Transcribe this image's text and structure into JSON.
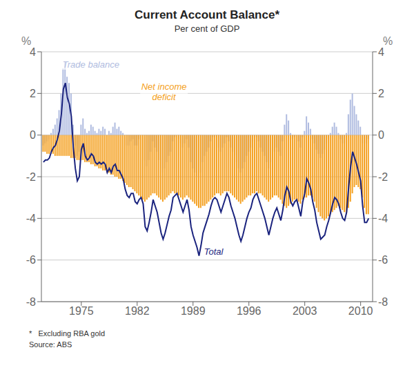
{
  "chart_data": {
    "type": "bar",
    "title": "Current Account Balance*",
    "subtitle": "Per cent of GDP",
    "ylabel": "%",
    "y2label": "%",
    "footnotes": [
      "*   Excluding RBA gold",
      "Source: ABS"
    ],
    "grid": true,
    "xlim": [
      1970.0,
      2011.5
    ],
    "xticks": [
      1975,
      1982,
      1989,
      1996,
      2003,
      2010
    ],
    "ylim": [
      -8,
      4
    ],
    "yticks": [
      -8,
      -6,
      -4,
      -2,
      0,
      2,
      4
    ],
    "y2lim": [
      -8,
      4
    ],
    "y2ticks": [
      -8,
      -6,
      -4,
      -2,
      0,
      2,
      4
    ],
    "x": [
      1970.25,
      1970.5,
      1970.75,
      1971.0,
      1971.25,
      1971.5,
      1971.75,
      1972.0,
      1972.25,
      1972.5,
      1972.75,
      1973.0,
      1973.25,
      1973.5,
      1973.75,
      1974.0,
      1974.25,
      1974.5,
      1974.75,
      1975.0,
      1975.25,
      1975.5,
      1975.75,
      1976.0,
      1976.25,
      1976.5,
      1976.75,
      1977.0,
      1977.25,
      1977.5,
      1977.75,
      1978.0,
      1978.25,
      1978.5,
      1978.75,
      1979.0,
      1979.25,
      1979.5,
      1979.75,
      1980.0,
      1980.25,
      1980.5,
      1980.75,
      1981.0,
      1981.25,
      1981.5,
      1981.75,
      1982.0,
      1982.25,
      1982.5,
      1982.75,
      1983.0,
      1983.25,
      1983.5,
      1983.75,
      1984.0,
      1984.25,
      1984.5,
      1984.75,
      1985.0,
      1985.25,
      1985.5,
      1985.75,
      1986.0,
      1986.25,
      1986.5,
      1986.75,
      1987.0,
      1987.25,
      1987.5,
      1987.75,
      1988.0,
      1988.25,
      1988.5,
      1988.75,
      1989.0,
      1989.25,
      1989.5,
      1989.75,
      1990.0,
      1990.25,
      1990.5,
      1990.75,
      1991.0,
      1991.25,
      1991.5,
      1991.75,
      1992.0,
      1992.25,
      1992.5,
      1992.75,
      1993.0,
      1993.25,
      1993.5,
      1993.75,
      1994.0,
      1994.25,
      1994.5,
      1994.75,
      1995.0,
      1995.25,
      1995.5,
      1995.75,
      1996.0,
      1996.25,
      1996.5,
      1996.75,
      1997.0,
      1997.25,
      1997.5,
      1997.75,
      1998.0,
      1998.25,
      1998.5,
      1998.75,
      1999.0,
      1999.25,
      1999.5,
      1999.75,
      2000.0,
      2000.25,
      2000.5,
      2000.75,
      2001.0,
      2001.25,
      2001.5,
      2001.75,
      2002.0,
      2002.25,
      2002.5,
      2002.75,
      2003.0,
      2003.25,
      2003.5,
      2003.75,
      2004.0,
      2004.25,
      2004.5,
      2004.75,
      2005.0,
      2005.25,
      2005.5,
      2005.75,
      2006.0,
      2006.25,
      2006.5,
      2006.75,
      2007.0,
      2007.25,
      2007.5,
      2007.75,
      2008.0,
      2008.25,
      2008.5,
      2008.75,
      2009.0,
      2009.25,
      2009.5,
      2009.75,
      2010.0,
      2010.25,
      2010.5,
      2010.75,
      2011.0
    ],
    "series": [
      {
        "name": "Trade balance",
        "type": "bar",
        "color": "#b0bce0",
        "values": [
          -0.5,
          -0.4,
          -0.3,
          -0.2,
          0.1,
          0.3,
          0.5,
          0.8,
          1.2,
          2.0,
          3.2,
          3.5,
          2.8,
          2.5,
          2.0,
          0.5,
          -0.5,
          -1.0,
          -0.8,
          0.5,
          0.8,
          0.3,
          0.1,
          0.2,
          0.5,
          0.4,
          0.2,
          0.1,
          0.3,
          0.2,
          0.4,
          0.3,
          0.0,
          0.2,
          0.1,
          0.4,
          0.6,
          0.3,
          0.4,
          0.2,
          0.1,
          -0.3,
          -0.5,
          -0.5,
          -0.3,
          -0.2,
          -0.5,
          -0.5,
          -0.2,
          0.0,
          -0.2,
          -1.2,
          -1.5,
          -1.2,
          -0.8,
          -0.3,
          -0.6,
          -0.8,
          -1.2,
          -1.6,
          -1.8,
          -1.6,
          -1.3,
          -1.0,
          -0.8,
          -0.3,
          -0.1,
          0.0,
          -0.2,
          -0.4,
          -0.6,
          -0.4,
          -0.2,
          -0.6,
          -1.3,
          -1.6,
          -1.8,
          -2.0,
          -2.3,
          -1.8,
          -1.3,
          -1.0,
          -0.8,
          -0.6,
          -0.3,
          -0.1,
          -0.1,
          -0.3,
          -0.6,
          -0.8,
          -0.6,
          -0.4,
          -0.1,
          -0.3,
          -0.6,
          -0.8,
          -1.0,
          -1.3,
          -1.6,
          -1.8,
          -1.6,
          -1.3,
          -1.0,
          -0.8,
          -0.6,
          -0.3,
          -0.1,
          -0.1,
          -0.3,
          -0.6,
          -0.8,
          -1.0,
          -1.3,
          -1.6,
          -1.3,
          -1.0,
          -0.8,
          -0.6,
          -0.8,
          -1.0,
          -0.3,
          0.5,
          1.0,
          0.7,
          0.1,
          -0.2,
          -0.1,
          0.0,
          -0.3,
          -0.6,
          -0.1,
          0.2,
          0.9,
          0.6,
          0.3,
          -0.2,
          -0.4,
          -0.7,
          -0.9,
          -1.1,
          -0.9,
          -0.7,
          -0.4,
          -0.2,
          0.1,
          0.4,
          0.6,
          0.4,
          0.1,
          -0.2,
          -0.4,
          -0.4,
          0.1,
          1.0,
          1.7,
          2.0,
          1.4,
          1.0,
          0.7,
          0.4,
          -0.4,
          -0.7,
          -0.4,
          -0.2
        ]
      },
      {
        "name": "Net income\ndeficit",
        "type": "bar",
        "color": "#f4a020",
        "values": [
          -0.8,
          -0.8,
          -0.9,
          -0.9,
          -0.9,
          -0.9,
          -1.0,
          -1.0,
          -1.0,
          -1.0,
          -1.0,
          -1.0,
          -1.0,
          -1.0,
          -1.1,
          -1.1,
          -1.1,
          -1.2,
          -1.2,
          -1.2,
          -1.2,
          -1.3,
          -1.3,
          -1.3,
          -1.4,
          -1.4,
          -1.5,
          -1.5,
          -1.6,
          -1.6,
          -1.7,
          -1.7,
          -1.8,
          -1.8,
          -1.9,
          -1.9,
          -2.0,
          -2.0,
          -2.1,
          -2.1,
          -2.2,
          -2.3,
          -2.4,
          -2.5,
          -2.5,
          -2.6,
          -2.7,
          -2.8,
          -2.9,
          -3.0,
          -3.1,
          -3.2,
          -3.1,
          -3.0,
          -2.9,
          -2.8,
          -2.8,
          -2.9,
          -3.0,
          -3.1,
          -3.2,
          -3.1,
          -3.0,
          -2.9,
          -2.8,
          -2.7,
          -2.8,
          -2.8,
          -2.9,
          -3.0,
          -3.1,
          -3.0,
          -2.9,
          -3.0,
          -3.1,
          -3.2,
          -3.3,
          -3.4,
          -3.5,
          -3.5,
          -3.4,
          -3.4,
          -3.3,
          -3.2,
          -3.1,
          -3.0,
          -2.9,
          -2.8,
          -2.8,
          -2.9,
          -2.8,
          -2.7,
          -2.7,
          -2.7,
          -2.8,
          -2.9,
          -3.0,
          -3.1,
          -3.2,
          -3.3,
          -3.2,
          -3.1,
          -3.0,
          -2.9,
          -2.9,
          -2.8,
          -2.8,
          -2.7,
          -2.8,
          -2.8,
          -2.9,
          -3.0,
          -3.1,
          -3.2,
          -3.1,
          -3.0,
          -2.9,
          -2.9,
          -3.0,
          -3.1,
          -3.3,
          -3.4,
          -3.5,
          -3.4,
          -3.3,
          -3.2,
          -3.1,
          -3.1,
          -3.2,
          -3.3,
          -3.1,
          -3.0,
          -3.0,
          -2.9,
          -2.9,
          -3.0,
          -3.2,
          -3.5,
          -3.7,
          -3.9,
          -4.0,
          -4.1,
          -4.0,
          -3.9,
          -3.8,
          -3.7,
          -3.6,
          -3.5,
          -3.4,
          -3.5,
          -3.6,
          -3.7,
          -3.8,
          -3.5,
          -3.2,
          -2.8,
          -2.5,
          -2.4,
          -2.5,
          -2.6,
          -3.0,
          -3.5,
          -3.8,
          -3.8
        ]
      },
      {
        "name": "Total",
        "type": "line",
        "color": "#1a237e",
        "values": [
          -1.3,
          -1.2,
          -1.2,
          -1.1,
          -0.8,
          -0.6,
          -0.5,
          -0.2,
          0.2,
          1.0,
          2.2,
          2.5,
          1.8,
          1.5,
          0.9,
          -0.6,
          -1.6,
          -2.2,
          -2.0,
          -0.7,
          -0.4,
          -1.0,
          -1.2,
          -1.1,
          -0.9,
          -1.0,
          -1.3,
          -1.4,
          -1.3,
          -1.4,
          -1.3,
          -1.4,
          -1.8,
          -1.6,
          -1.8,
          -1.5,
          -1.4,
          -1.7,
          -1.7,
          -1.9,
          -2.1,
          -2.6,
          -2.9,
          -3.0,
          -2.8,
          -2.8,
          -3.2,
          -3.3,
          -3.1,
          -3.0,
          -3.3,
          -4.4,
          -4.6,
          -4.2,
          -3.7,
          -3.1,
          -3.4,
          -3.7,
          -4.2,
          -4.7,
          -5.0,
          -4.7,
          -4.3,
          -3.9,
          -3.6,
          -3.0,
          -2.9,
          -2.8,
          -3.1,
          -3.4,
          -3.7,
          -3.4,
          -3.1,
          -3.6,
          -4.4,
          -4.8,
          -5.1,
          -5.4,
          -5.8,
          -5.3,
          -4.7,
          -4.4,
          -4.1,
          -3.8,
          -3.4,
          -3.1,
          -3.0,
          -3.1,
          -3.4,
          -3.7,
          -3.4,
          -3.1,
          -2.8,
          -3.0,
          -3.4,
          -3.7,
          -4.0,
          -4.4,
          -4.8,
          -5.1,
          -4.8,
          -4.4,
          -4.0,
          -3.7,
          -3.5,
          -3.1,
          -2.9,
          -2.8,
          -3.1,
          -3.4,
          -3.7,
          -4.0,
          -4.4,
          -4.8,
          -4.4,
          -4.0,
          -3.7,
          -3.5,
          -3.8,
          -4.1,
          -3.6,
          -2.9,
          -2.5,
          -2.7,
          -3.2,
          -3.4,
          -3.2,
          -3.1,
          -3.5,
          -3.9,
          -3.2,
          -2.8,
          -2.1,
          -2.3,
          -2.6,
          -3.2,
          -3.6,
          -4.2,
          -4.6,
          -5.0,
          -4.9,
          -4.8,
          -4.4,
          -4.1,
          -3.7,
          -3.3,
          -3.0,
          -3.1,
          -3.3,
          -3.7,
          -4.0,
          -4.1,
          -3.7,
          -2.5,
          -1.5,
          -0.8,
          -1.1,
          -1.4,
          -1.8,
          -2.2,
          -3.4,
          -4.2,
          -4.2,
          -4.0
        ]
      }
    ]
  }
}
